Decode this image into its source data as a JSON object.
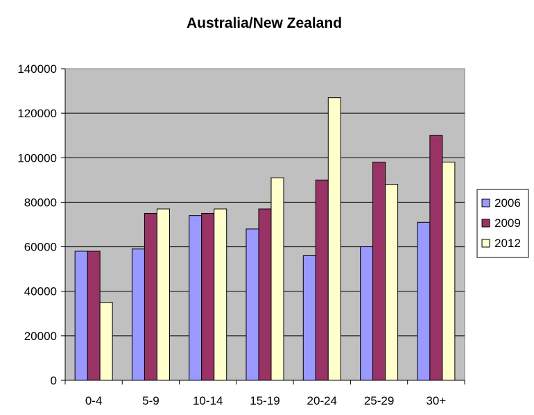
{
  "chart_data": {
    "type": "bar",
    "title": "Australia/New Zealand",
    "xlabel": "",
    "ylabel": "",
    "categories": [
      "0-4",
      "5-9",
      "10-14",
      "15-19",
      "20-24",
      "25-29",
      "30+"
    ],
    "series": [
      {
        "name": "2006",
        "color": "#9999FF",
        "values": [
          58000,
          59000,
          74000,
          68000,
          56000,
          60000,
          71000
        ]
      },
      {
        "name": "2009",
        "color": "#993366",
        "values": [
          58000,
          75000,
          75000,
          77000,
          90000,
          98000,
          110000
        ]
      },
      {
        "name": "2012",
        "color": "#FFFFCC",
        "values": [
          35000,
          77000,
          77000,
          91000,
          127000,
          88000,
          98000
        ]
      }
    ],
    "ylim": [
      0,
      140000
    ],
    "yticks": [
      "0",
      "20000",
      "40000",
      "60000",
      "80000",
      "100000",
      "120000",
      "140000"
    ],
    "grid": true,
    "legend_position": "right",
    "plot_background": "#C0C0C0"
  }
}
